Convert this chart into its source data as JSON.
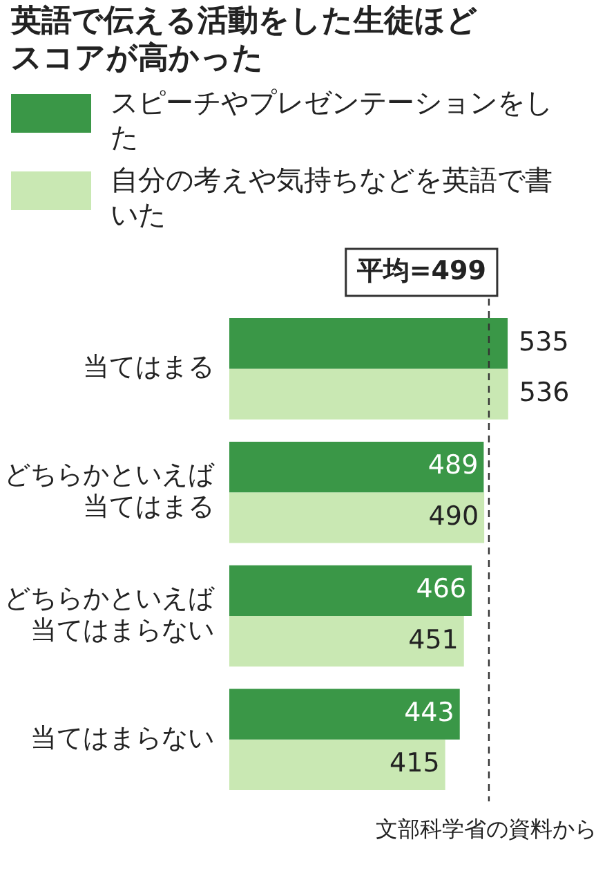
{
  "chart_data": {
    "type": "bar",
    "orientation": "horizontal",
    "title": "英語で伝える活動をした生徒ほどスコアが高かった",
    "categories": [
      "当てはまる",
      "どちらかといえば当てはまる",
      "どちらかといえば当てはまらない",
      "当てはまらない"
    ],
    "series": [
      {
        "name": "スピーチやプレゼンテーションをした",
        "color": "#3a9747",
        "values": [
          535,
          489,
          466,
          443
        ]
      },
      {
        "name": "自分の考えや気持ちなどを英語で書いた",
        "color": "#c9e8b3",
        "values": [
          536,
          490,
          451,
          415
        ]
      }
    ],
    "tick_labels": "y",
    "legend": "top",
    "data_labels": true,
    "ref_lines": [
      {
        "axis": "x",
        "value": 499,
        "label": "平均=499"
      }
    ],
    "annotations": [
      "文部科学省の資料から"
    ]
  }
}
